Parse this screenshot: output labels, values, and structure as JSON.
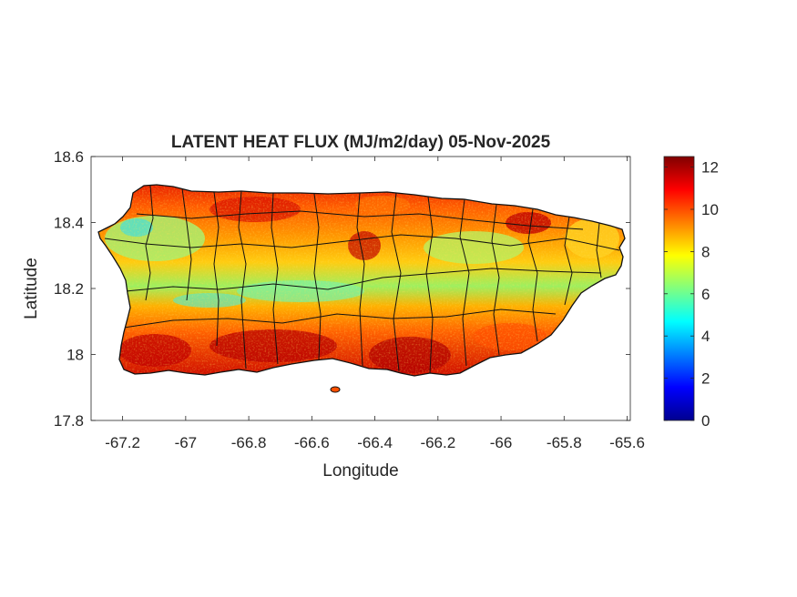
{
  "title": "LATENT HEAT FLUX (MJ/m2/day) 05-Nov-2025",
  "xlabel": "Longitude",
  "ylabel": "Latitude",
  "x_axis": {
    "range": [
      -67.3,
      -65.59
    ],
    "ticks": [
      -67.2,
      -67,
      -66.8,
      -66.6,
      -66.4,
      -66.2,
      -66,
      -65.8,
      -65.6
    ],
    "tick_labels": [
      "-67.2",
      "-67",
      "-66.8",
      "-66.6",
      "-66.4",
      "-66.2",
      "-66",
      "-65.8",
      "-65.6"
    ]
  },
  "y_axis": {
    "range": [
      17.8,
      18.6
    ],
    "ticks": [
      17.8,
      18,
      18.2,
      18.4,
      18.6
    ],
    "tick_labels": [
      "17.8",
      "18",
      "18.2",
      "18.4",
      "18.6"
    ]
  },
  "colorbar": {
    "range": [
      0,
      12.5
    ],
    "ticks": [
      0,
      2,
      4,
      6,
      8,
      10,
      12
    ],
    "tick_labels": [
      "0",
      "2",
      "4",
      "6",
      "8",
      "10",
      "12"
    ],
    "colormap": "jet",
    "colors": [
      "#00008f",
      "#0000ff",
      "#00ffff",
      "#ffff00",
      "#ff0000",
      "#800000"
    ]
  },
  "chart_data": {
    "type": "heatmap",
    "title": "LATENT HEAT FLUX (MJ/m2/day) 05-Nov-2025",
    "xlabel": "Longitude",
    "ylabel": "Latitude",
    "xlim": [
      -67.3,
      -65.59
    ],
    "ylim": [
      17.8,
      18.6
    ],
    "clim": [
      0,
      12.5
    ],
    "region": "Puerto Rico",
    "grid": false,
    "legend": "colorbar right",
    "municipal_boundaries": true,
    "value_bands": [
      {
        "zone": "north coast",
        "lat_range": [
          18.38,
          18.52
        ],
        "approx_value": 10.5
      },
      {
        "zone": "north-central interior",
        "lat_range": [
          18.25,
          18.38
        ],
        "approx_value": 9
      },
      {
        "zone": "central cordillera",
        "lat_range": [
          18.15,
          18.25
        ],
        "approx_value": 7.5
      },
      {
        "zone": "south-central",
        "lat_range": [
          18.05,
          18.15
        ],
        "approx_value": 9.5
      },
      {
        "zone": "south coast",
        "lat_range": [
          17.92,
          18.05
        ],
        "approx_value": 11
      }
    ]
  }
}
